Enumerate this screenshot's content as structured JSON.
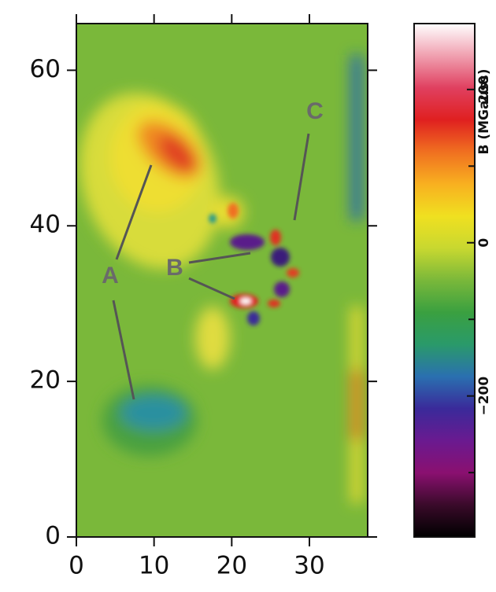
{
  "chart_data": {
    "type": "heatmap",
    "xlim": [
      0,
      37.5
    ],
    "xticks": [
      0,
      10,
      20,
      30
    ],
    "ylim": [
      0,
      66
    ],
    "yticks": [
      0,
      20,
      40,
      60
    ],
    "colorbar_label": "B (MGauss)",
    "clim": [
      -384,
      286
    ],
    "cticks": [
      {
        "value": -200,
        "label": "−200"
      },
      0,
      200
    ],
    "cminor_ticks": [
      -300,
      -100,
      100
    ],
    "colormap": [
      "#000000",
      "#3a0a2a",
      "#8a1070",
      "#6a1a90",
      "#3a2a9a",
      "#2a70b0",
      "#2a9a6a",
      "#3aa040",
      "#7ab83a",
      "#c8d830",
      "#f0e020",
      "#f8b020",
      "#f07020",
      "#e02020",
      "#e04060",
      "#f0a0b0",
      "#ffffff"
    ],
    "annotations": [
      {
        "text": "A"
      },
      {
        "text": "B"
      },
      {
        "text": "C"
      }
    ]
  }
}
